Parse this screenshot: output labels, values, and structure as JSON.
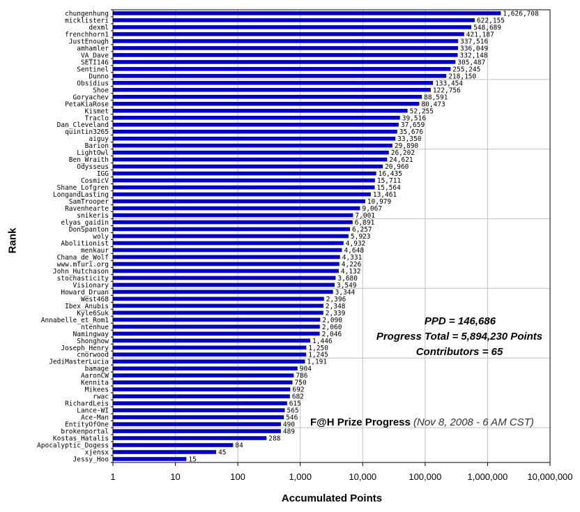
{
  "chart_data": {
    "type": "bar",
    "orientation": "horizontal",
    "xscale": "log",
    "xlim": [
      1,
      10000000
    ],
    "xticks": [
      "1",
      "10",
      "100",
      "1,000",
      "10,000",
      "100,000",
      "1,000,000",
      "10,000,000"
    ],
    "xlabel": "Accumulated Points",
    "ylabel": "Rank",
    "bar_color": "#0000cc",
    "grid": "horizontal-every-10",
    "categories": [
      "chungenhung",
      "micklisteri",
      "dexml",
      "frenchhorn1",
      "JustEnough",
      "amhamler",
      "VA_Dave",
      "SETI146",
      "Sentinel",
      "Dunno",
      "Obsidius",
      "Shoe",
      "Goryachev",
      "PetaKiaRose",
      "Kismet",
      "Traclo",
      "Dan_Cleveland",
      "quintin3265",
      "aiguy",
      "Barion",
      "LightOwl",
      "Ben_Wraith",
      "Odysseus",
      "IGG",
      "CosmicV",
      "Shane_Lofgren",
      "LongandLasting",
      "SamTrooper",
      "Ravenhearte",
      "snikeris",
      "elyas_gaidin",
      "DonSpanton",
      "woly",
      "Abolitionist",
      "menkaur",
      "Chana_de_Wolf",
      "www.mfuri.org",
      "John_Hutchason",
      "stochasticity",
      "Visionary",
      "Howard_Druan",
      "West468",
      "Ibex_Anubis",
      "Kyle6Suk",
      "Annabelle_et_Rom1",
      "ntenhue",
      "Namingway",
      "Shonghow",
      "Joseph_Henry",
      "cnorwood",
      "JediMasterLucia",
      "bamage",
      "AaronCW",
      "Kennita",
      "Mikees",
      "rwac",
      "RichardLeis",
      "Lance-WI",
      "Ace-Man",
      "EntityOfOne",
      "brokenportal",
      "Kostas_Hatalis",
      "Apocalyptic_Dogess",
      "xjensx",
      "Jessy_Hoo"
    ],
    "values": [
      1626708,
      622155,
      548689,
      421187,
      337516,
      336049,
      332148,
      305487,
      255245,
      218150,
      133454,
      122756,
      88591,
      80473,
      52255,
      39516,
      37659,
      35676,
      33350,
      29890,
      26202,
      24621,
      20960,
      16435,
      15711,
      15564,
      13461,
      10979,
      9067,
      7001,
      6891,
      6257,
      5923,
      4932,
      4648,
      4331,
      4226,
      4132,
      3680,
      3549,
      3344,
      2396,
      2348,
      2339,
      2090,
      2060,
      2046,
      1446,
      1250,
      1245,
      1191,
      904,
      786,
      750,
      692,
      682,
      615,
      565,
      546,
      490,
      489,
      288,
      84,
      45,
      15
    ],
    "value_labels": [
      "1,626,708",
      "622,155",
      "548,689",
      "421,187",
      "337,516",
      "336,049",
      "332,148",
      "305,487",
      "255,245",
      "218,150",
      "133,454",
      "122,756",
      "88,591",
      "80,473",
      "52,255",
      "39,516",
      "37,659",
      "35,676",
      "33,350",
      "29,890",
      "26,202",
      "24,621",
      "20,960",
      "16,435",
      "15,711",
      "15,564",
      "13,461",
      "10,979",
      "9,067",
      "7,001",
      "6,891",
      "6,257",
      "5,923",
      "4,932",
      "4,648",
      "4,331",
      "4,226",
      "4,132",
      "3,680",
      "3,549",
      "3,344",
      "2,396",
      "2,348",
      "2,339",
      "2,090",
      "2,060",
      "2,046",
      "1,446",
      "1,250",
      "1,245",
      "1,191",
      "904",
      "786",
      "750",
      "692",
      "682",
      "615",
      "565",
      "546",
      "490",
      "489",
      "288",
      "84",
      "45",
      "15"
    ]
  },
  "annotations": {
    "ppd": "PPD = 146,686",
    "progress_total": "Progress Total = 5,894,230 Points",
    "contributors": "Contributors = 65",
    "prize_title": "F@H Prize Progress",
    "prize_date": "(Nov 8, 2008 - 6 AM CST)"
  }
}
